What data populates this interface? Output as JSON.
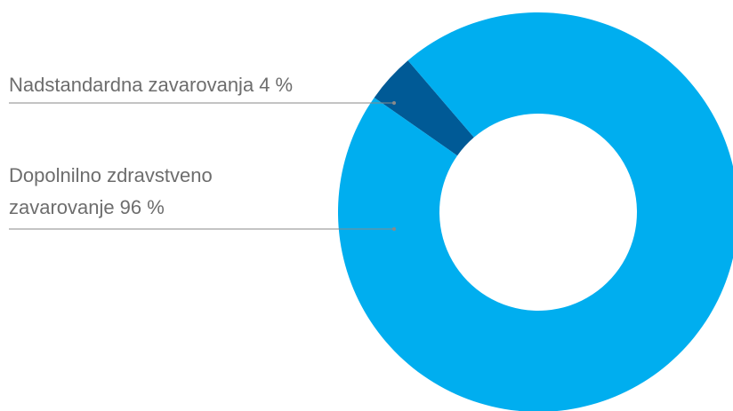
{
  "chart_data": {
    "type": "donut",
    "categories": [
      "Nadstandardna zavarovanja",
      "Dopolnilno zdravstveno zavarovanje"
    ],
    "values": [
      4,
      96
    ],
    "value_labels": [
      "4 %",
      "96 %"
    ],
    "colors": [
      "#005a96",
      "#00aeef"
    ]
  }
}
